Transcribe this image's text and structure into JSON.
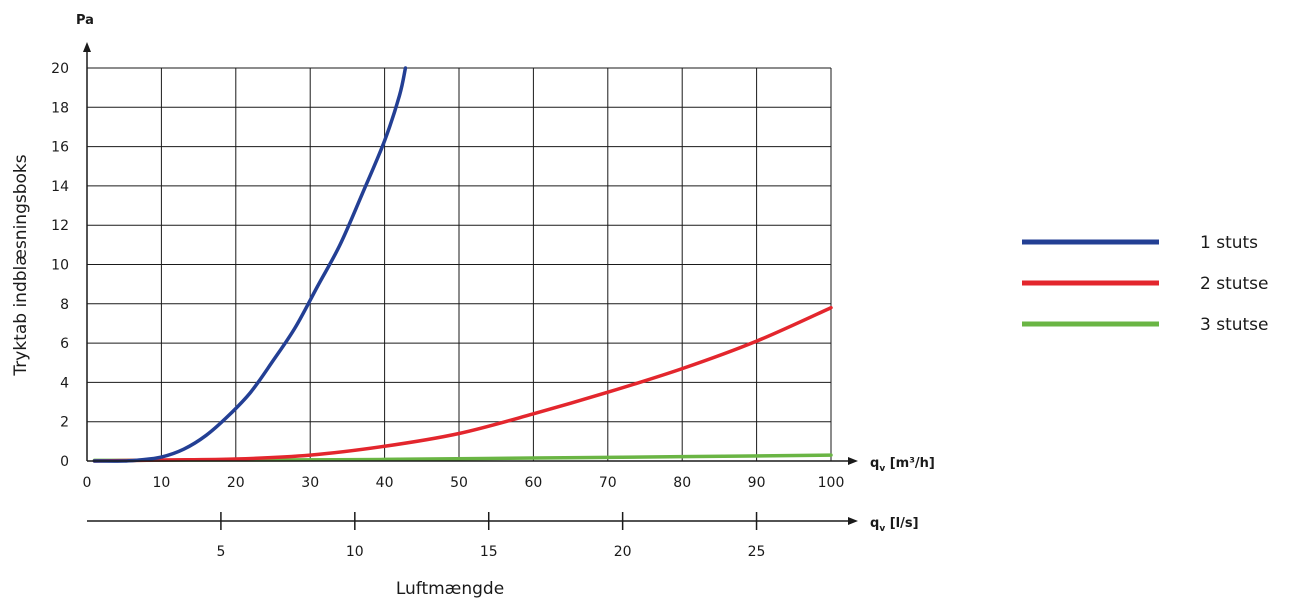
{
  "chart_data": {
    "type": "line",
    "y_unit": "Pa",
    "ylabel": "Tryktab indblæsningsboks",
    "xlabel": "Luftmængde",
    "x_unit_primary": "q",
    "x_unit_primary_sub": "v",
    "x_unit_primary_rest": " [m³/h]",
    "x_unit_secondary": "q",
    "x_unit_secondary_sub": "v",
    "x_unit_secondary_rest": " [l/s]",
    "xlim": [
      0,
      100
    ],
    "ylim": [
      0,
      20
    ],
    "x_ticks": [
      0,
      10,
      20,
      30,
      40,
      50,
      60,
      70,
      80,
      90,
      100
    ],
    "y_ticks": [
      0,
      2,
      4,
      6,
      8,
      10,
      12,
      14,
      16,
      18,
      20
    ],
    "secondary_xlim": [
      0,
      27.78
    ],
    "secondary_x_ticks": [
      5,
      10,
      15,
      20,
      25
    ],
    "grid": true,
    "legend_position": "right",
    "series": [
      {
        "name": "1 stuts",
        "color": "#233f94",
        "x": [
          1,
          5,
          7,
          10,
          13,
          16,
          19,
          22,
          25,
          28,
          31,
          34,
          37,
          40,
          42,
          42.8
        ],
        "y": [
          0,
          0,
          0.05,
          0.2,
          0.6,
          1.3,
          2.3,
          3.5,
          5.1,
          6.8,
          8.9,
          11.0,
          13.6,
          16.3,
          18.6,
          20
        ]
      },
      {
        "name": "2 stutse",
        "color": "#e3262d",
        "x": [
          1,
          10,
          20,
          30,
          40,
          50,
          60,
          70,
          80,
          90,
          100
        ],
        "y": [
          0,
          0.05,
          0.1,
          0.3,
          0.75,
          1.4,
          2.4,
          3.5,
          4.7,
          6.1,
          7.8
        ]
      },
      {
        "name": "3 stutse",
        "color": "#6ab544",
        "x": [
          1,
          20,
          40,
          60,
          80,
          100
        ],
        "y": [
          0.03,
          0.05,
          0.08,
          0.15,
          0.22,
          0.3
        ]
      }
    ]
  }
}
